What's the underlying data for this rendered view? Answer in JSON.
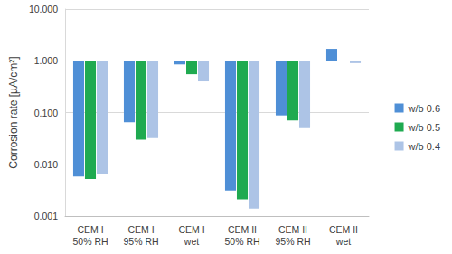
{
  "chart_data": {
    "type": "bar",
    "y_label": "Corrosion rate [µA/cm²]",
    "categories": [
      "CEM I\n50% RH",
      "CEM I\n95% RH",
      "CEM I\nwet",
      "CEM II\n50% RH",
      "CEM II\n95% RH",
      "CEM II\nwet"
    ],
    "series": [
      {
        "name": "w/b 0.6",
        "color": "#4f8fd6",
        "values": [
          0.0058,
          0.065,
          0.85,
          0.0031,
          0.088,
          1.7
        ]
      },
      {
        "name": "w/b 0.5",
        "color": "#1faa50",
        "values": [
          0.0052,
          0.03,
          0.55,
          0.0021,
          0.07,
          0.98
        ]
      },
      {
        "name": "w/b 0.4",
        "color": "#adc4e6",
        "values": [
          0.0065,
          0.032,
          0.4,
          0.0014,
          0.05,
          0.9
        ]
      }
    ],
    "log": "y",
    "ylim": [
      0.001,
      10
    ],
    "yticks": [
      0.001,
      {
        "value": 0.01,
        "label": "0.010"
      },
      {
        "value": 0.1,
        "label": "0.100"
      },
      {
        "value": 1,
        "label": "1.000"
      },
      {
        "value": 10,
        "label": "10.000"
      }
    ],
    "grid": true,
    "legend": "right"
  }
}
